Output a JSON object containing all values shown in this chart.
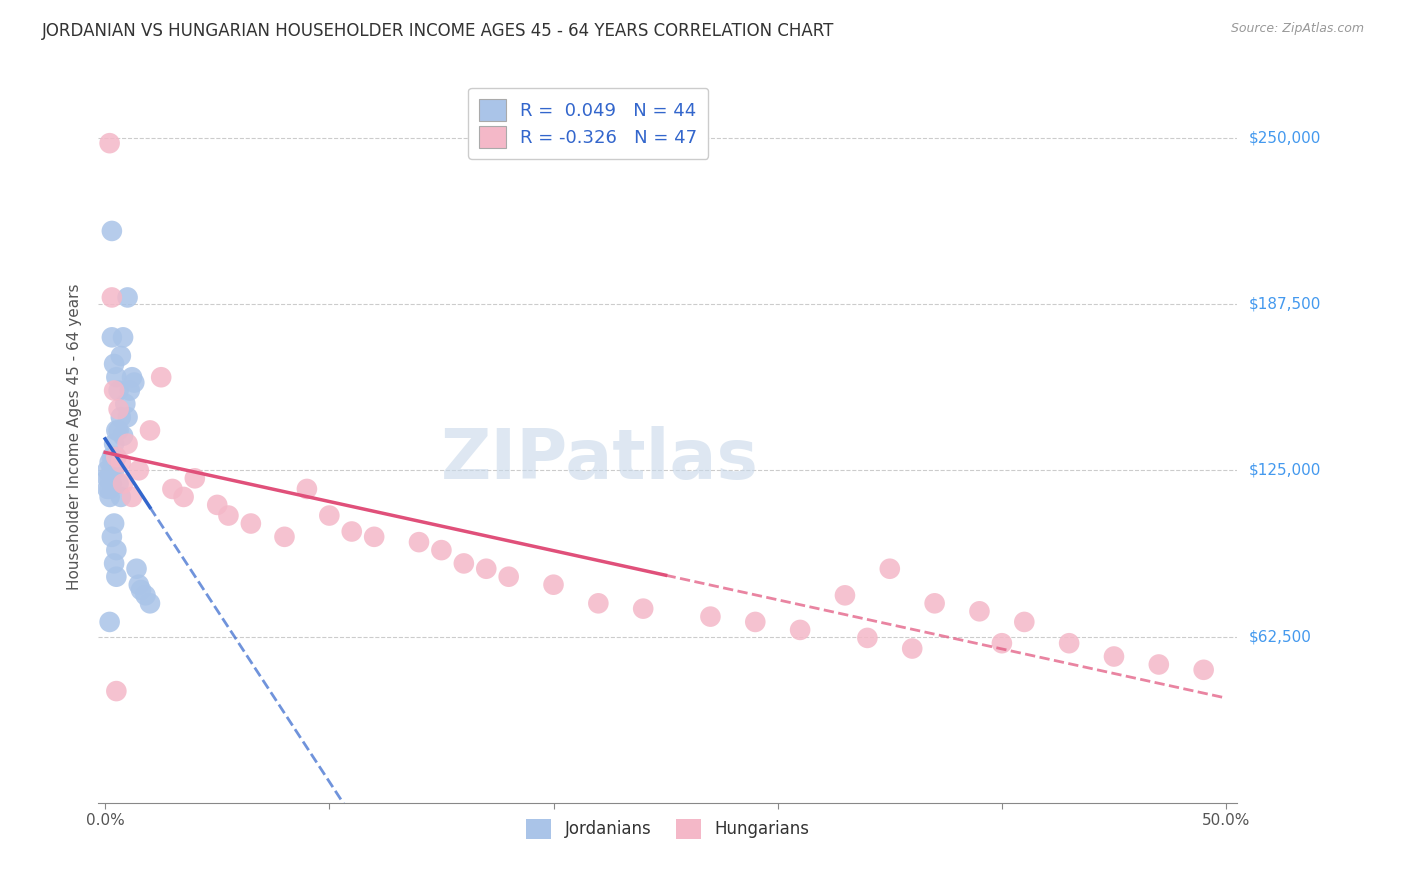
{
  "title": "JORDANIAN VS HUNGARIAN HOUSEHOLDER INCOME AGES 45 - 64 YEARS CORRELATION CHART",
  "source": "Source: ZipAtlas.com",
  "ylabel": "Householder Income Ages 45 - 64 years",
  "xlim": [
    -0.003,
    0.505
  ],
  "ylim": [
    0,
    275000
  ],
  "xticks": [
    0.0,
    0.1,
    0.2,
    0.3,
    0.4,
    0.5
  ],
  "xticklabels": [
    "0.0%",
    "",
    "",
    "",
    "",
    "50.0%"
  ],
  "ytick_positions": [
    62500,
    125000,
    187500,
    250000
  ],
  "ytick_labels": [
    "$62,500",
    "$125,000",
    "$187,500",
    "$250,000"
  ],
  "grid_color": "#cccccc",
  "background_color": "#ffffff",
  "jordanian_color": "#aac4e8",
  "hungarian_color": "#f4b8c8",
  "trendline_jordan_color": "#3366cc",
  "trendline_hungarian_color": "#e0507a",
  "legend_label_blue": "R =  0.049   N = 44",
  "legend_label_pink": "R = -0.326   N = 47",
  "axis_label_fontsize": 11,
  "tick_label_color_right": "#4499ee",
  "jordanian_x": [
    0.001,
    0.001,
    0.001,
    0.002,
    0.002,
    0.002,
    0.002,
    0.003,
    0.003,
    0.003,
    0.003,
    0.003,
    0.004,
    0.004,
    0.004,
    0.004,
    0.004,
    0.005,
    0.005,
    0.005,
    0.005,
    0.006,
    0.006,
    0.006,
    0.007,
    0.007,
    0.007,
    0.008,
    0.008,
    0.009,
    0.01,
    0.01,
    0.011,
    0.012,
    0.013,
    0.014,
    0.015,
    0.016,
    0.018,
    0.02,
    0.003,
    0.004,
    0.005,
    0.002
  ],
  "jordanian_y": [
    125000,
    122000,
    118000,
    128000,
    122000,
    118000,
    115000,
    215000,
    175000,
    130000,
    125000,
    120000,
    165000,
    135000,
    128000,
    125000,
    105000,
    160000,
    140000,
    130000,
    95000,
    155000,
    140000,
    120000,
    168000,
    145000,
    115000,
    175000,
    138000,
    150000,
    190000,
    145000,
    155000,
    160000,
    158000,
    88000,
    82000,
    80000,
    78000,
    75000,
    100000,
    90000,
    85000,
    68000
  ],
  "hungarian_x": [
    0.002,
    0.003,
    0.004,
    0.005,
    0.006,
    0.007,
    0.008,
    0.01,
    0.012,
    0.015,
    0.02,
    0.025,
    0.03,
    0.035,
    0.04,
    0.05,
    0.055,
    0.065,
    0.08,
    0.09,
    0.1,
    0.11,
    0.12,
    0.14,
    0.15,
    0.16,
    0.17,
    0.18,
    0.2,
    0.22,
    0.24,
    0.27,
    0.29,
    0.31,
    0.33,
    0.35,
    0.37,
    0.39,
    0.41,
    0.43,
    0.45,
    0.47,
    0.49,
    0.34,
    0.36,
    0.4,
    0.005
  ],
  "hungarian_y": [
    248000,
    190000,
    155000,
    130000,
    148000,
    128000,
    120000,
    135000,
    115000,
    125000,
    140000,
    160000,
    118000,
    115000,
    122000,
    112000,
    108000,
    105000,
    100000,
    118000,
    108000,
    102000,
    100000,
    98000,
    95000,
    90000,
    88000,
    85000,
    82000,
    75000,
    73000,
    70000,
    68000,
    65000,
    78000,
    88000,
    75000,
    72000,
    68000,
    60000,
    55000,
    52000,
    50000,
    62000,
    58000,
    60000,
    42000
  ]
}
